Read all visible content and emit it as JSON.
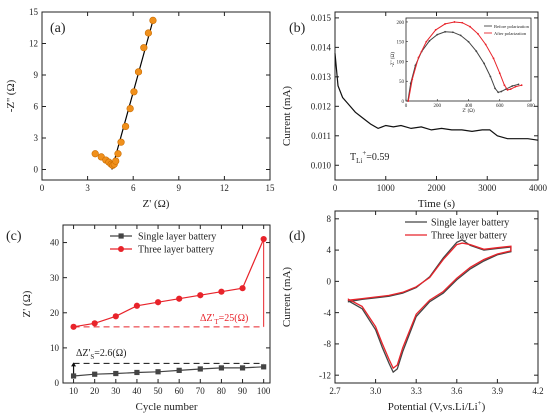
{
  "chart_data": [
    {
      "panel_label": "(a)",
      "type": "scatter",
      "xlabel": "Z' (Ω)",
      "ylabel": "-Z'' (Ω)",
      "xlim": [
        0,
        15
      ],
      "ylim": [
        -1,
        15
      ],
      "xticks": [
        0,
        3,
        6,
        9,
        12,
        15
      ],
      "yticks": [
        0,
        3,
        6,
        9,
        12,
        15
      ],
      "marker_color": "#f0901c",
      "fit_color": "#000000",
      "series": [
        {
          "x": [
            3.5,
            3.9,
            4.2,
            4.4,
            4.55,
            4.65,
            4.75,
            4.85,
            5.0,
            5.2,
            5.5,
            5.8,
            6.05,
            6.35,
            6.7,
            7.0,
            7.3
          ],
          "y": [
            1.5,
            1.2,
            0.9,
            0.7,
            0.5,
            0.4,
            0.5,
            0.8,
            1.5,
            2.6,
            4.1,
            5.8,
            7.4,
            9.3,
            11.6,
            13.0,
            14.2
          ]
        }
      ],
      "fit_line": {
        "x": [
          4.6,
          7.3
        ],
        "y": [
          0.0,
          14.2
        ]
      }
    },
    {
      "panel_label": "(b)",
      "type": "line",
      "xlabel": "Time (s)",
      "ylabel": "Current (mA)",
      "xlim": [
        0,
        4000
      ],
      "ylim": [
        0.0095,
        0.0152
      ],
      "xticks": [
        0,
        1000,
        2000,
        3000,
        4000
      ],
      "yticks": [
        0.01,
        0.011,
        0.012,
        0.013,
        0.014,
        0.015
      ],
      "ytick_labels": [
        "0.010",
        "0.011",
        "0.012",
        "0.013",
        "0.014",
        "0.015"
      ],
      "annotation": "T",
      "annotation_sub": "Li",
      "annotation_sup": "+",
      "annotation_val": "=0.59",
      "series": [
        {
          "x": [
            0,
            60,
            150,
            250,
            400,
            550,
            700,
            850,
            1000,
            1150,
            1300,
            1500,
            1700,
            1900,
            2100,
            2300,
            2500,
            2700,
            2900,
            3050,
            3200,
            3400,
            3600,
            3800,
            4000
          ],
          "y": [
            0.0138,
            0.0127,
            0.0123,
            0.0121,
            0.0118,
            0.0116,
            0.0114,
            0.01125,
            0.01135,
            0.0113,
            0.01135,
            0.01125,
            0.0113,
            0.0112,
            0.01125,
            0.0112,
            0.0112,
            0.01115,
            0.0112,
            0.0112,
            0.011,
            0.0109,
            0.0109,
            0.0109,
            0.01085
          ]
        }
      ],
      "inset": {
        "xlabel": "Z' (Ω)",
        "ylabel": "-Z'' (Ω)",
        "xlim": [
          0,
          800
        ],
        "ylim": [
          0,
          210
        ],
        "xticks": [
          0,
          200,
          400,
          600,
          800
        ],
        "yticks": [
          0,
          50,
          100,
          150,
          200
        ],
        "legend": [
          "Before polarization",
          "After polarization"
        ],
        "series": [
          {
            "name": "Before polarization",
            "color": "#444444",
            "x": [
              12,
              30,
              60,
              100,
              150,
              200,
              250,
              300,
              350,
              400,
              450,
              500,
              540,
              570,
              590,
              610,
              640,
              680,
              720
            ],
            "y": [
              0,
              45,
              90,
              125,
              152,
              168,
              175,
              174,
              166,
              150,
              126,
              95,
              62,
              32,
              22,
              24,
              30,
              38,
              42
            ]
          },
          {
            "name": "After polarization",
            "color": "#e8232a",
            "x": [
              15,
              40,
              80,
              130,
              190,
              250,
              310,
              360,
              410,
              460,
              510,
              560,
              600,
              630,
              650,
              670,
              700,
              740
            ],
            "y": [
              0,
              55,
              110,
              150,
              180,
              195,
              200,
              198,
              188,
              170,
              143,
              108,
              70,
              40,
              28,
              30,
              36,
              40
            ]
          }
        ]
      }
    },
    {
      "panel_label": "(c)",
      "type": "line",
      "xlabel": "Cycle number",
      "ylabel": "Z' (Ω)",
      "xlim": [
        5,
        103
      ],
      "ylim": [
        0,
        45
      ],
      "xticks": [
        10,
        20,
        30,
        40,
        50,
        60,
        70,
        80,
        90,
        100
      ],
      "yticks": [
        0,
        10,
        20,
        30,
        40
      ],
      "legend_position": "top-left",
      "categories": [
        10,
        20,
        30,
        40,
        50,
        60,
        70,
        80,
        90,
        100
      ],
      "series": [
        {
          "name": "Single layer battery",
          "color": "#444444",
          "marker": "square",
          "values": [
            2.0,
            2.5,
            2.7,
            3.0,
            3.2,
            3.6,
            4.0,
            4.3,
            4.3,
            4.6
          ]
        },
        {
          "name": "Three layer battery",
          "color": "#e8232a",
          "marker": "circle",
          "values": [
            16,
            17,
            19,
            22,
            23,
            24,
            25,
            26,
            27,
            41
          ]
        }
      ],
      "annotations": [
        {
          "text": "ΔZ'",
          "sub": "T",
          "value": "=25(Ω)",
          "color": "#e8232a"
        },
        {
          "text": "ΔZ'",
          "sub": "S",
          "value": "=2.6(Ω)",
          "color": "#222222"
        }
      ]
    },
    {
      "panel_label": "(d)",
      "type": "line",
      "xlabel": "Potential (V,vs.Li/Li",
      "xlabel_sup": "+",
      "xlabel_end": ")",
      "ylabel": "Current (mA)",
      "xlim": [
        2.7,
        4.2
      ],
      "ylim": [
        -13,
        9
      ],
      "xticks": [
        2.7,
        3.0,
        3.3,
        3.6,
        3.9,
        4.2
      ],
      "xtick_labels": [
        "2.7",
        "3.0",
        "3.3",
        "3.6",
        "3.9",
        "4.2"
      ],
      "yticks": [
        -12,
        -8,
        -4,
        0,
        4,
        8
      ],
      "legend_position": "top-right",
      "series": [
        {
          "name": "Single layer battery",
          "color": "#444444",
          "x": [
            2.8,
            2.9,
            3.0,
            3.05,
            3.1,
            3.13,
            3.16,
            3.2,
            3.3,
            3.4,
            3.5,
            3.6,
            3.7,
            3.8,
            3.9,
            4.0,
            4.0,
            3.9,
            3.8,
            3.7,
            3.64,
            3.6,
            3.5,
            3.4,
            3.3,
            3.2,
            3.1,
            3.0,
            2.9,
            2.8
          ],
          "y": [
            -2.5,
            -3.5,
            -6.2,
            -8.5,
            -10.5,
            -11.6,
            -11.2,
            -9.0,
            -4.5,
            -2.6,
            -1.5,
            0.2,
            1.6,
            2.6,
            3.4,
            3.8,
            4.4,
            4.2,
            4.0,
            4.6,
            5.3,
            5.0,
            3.0,
            0.6,
            -0.8,
            -1.5,
            -1.9,
            -2.1,
            -2.3,
            -2.6
          ]
        },
        {
          "name": "Three layer battery",
          "color": "#e8232a",
          "x": [
            2.8,
            2.9,
            3.0,
            3.05,
            3.1,
            3.13,
            3.16,
            3.2,
            3.3,
            3.4,
            3.5,
            3.6,
            3.7,
            3.8,
            3.9,
            4.0,
            4.0,
            3.9,
            3.8,
            3.7,
            3.64,
            3.6,
            3.5,
            3.4,
            3.3,
            3.2,
            3.1,
            3.0,
            2.9,
            2.8
          ],
          "y": [
            -2.3,
            -3.2,
            -5.8,
            -8.0,
            -10.0,
            -11.1,
            -10.7,
            -8.5,
            -4.2,
            -2.4,
            -1.3,
            0.4,
            1.8,
            2.8,
            3.5,
            3.9,
            4.5,
            4.3,
            4.1,
            4.7,
            4.9,
            4.7,
            2.8,
            0.5,
            -0.7,
            -1.4,
            -1.8,
            -2.0,
            -2.2,
            -2.4
          ]
        }
      ]
    }
  ]
}
